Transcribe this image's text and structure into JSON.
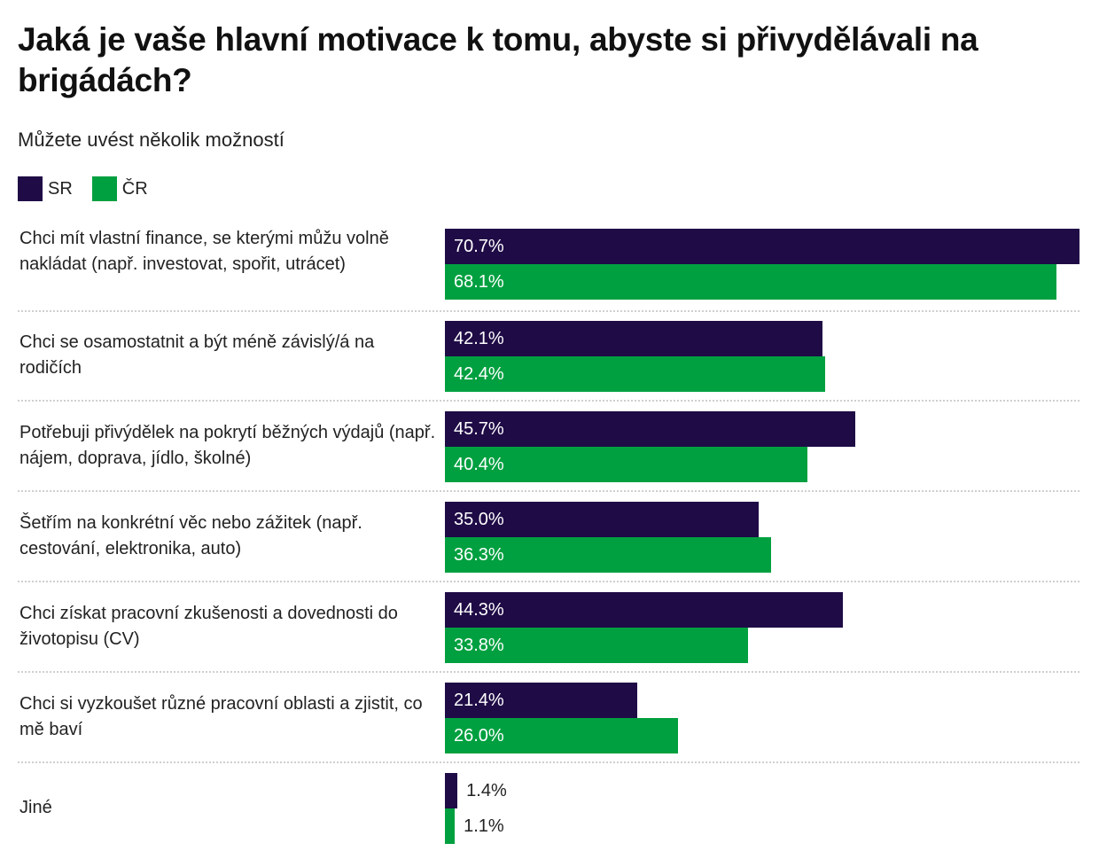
{
  "chart_data": {
    "type": "bar",
    "orientation": "horizontal",
    "title": "Jaká je vaše hlavní motivace k tomu, abyste si přivydělávali na brigádách?",
    "subtitle": "Můžete uvést několik možností",
    "xlabel": "",
    "ylabel": "",
    "unit": "%",
    "xlim": [
      0,
      70.7
    ],
    "grid": false,
    "legend_position": "top-left",
    "colors": {
      "SR": "#1f0b46",
      "ČR": "#00a040"
    },
    "categories": [
      "Chci mít vlastní finance, se kterými můžu volně nakládat (např. investovat, spořit, utrácet)",
      "Chci se osamostatnit a být méně závislý/á na rodičích",
      "Potřebuji přivýdělek na pokrytí běžných výdajů (např. nájem, doprava, jídlo, školné)",
      "Šetřím na konkrétní věc nebo zážitek (např. cestování, elektronika, auto)",
      "Chci získat pracovní zkušenosti a dovednosti do životopisu (CV)",
      "Chci si vyzkoušet různé pracovní oblasti a zjistit, co mě baví",
      "Jiné"
    ],
    "series": [
      {
        "name": "SR",
        "values": [
          70.7,
          42.1,
          45.7,
          35.0,
          44.3,
          21.4,
          1.4
        ],
        "labels": [
          "70.7%",
          "42.1%",
          "45.7%",
          "35.0%",
          "44.3%",
          "21.4%",
          "1.4%"
        ]
      },
      {
        "name": "ČR",
        "values": [
          68.1,
          42.4,
          40.4,
          36.3,
          33.8,
          26.0,
          1.1
        ],
        "labels": [
          "68.1%",
          "42.4%",
          "40.4%",
          "36.3%",
          "33.8%",
          "26.0%",
          "1.1%"
        ]
      }
    ]
  }
}
